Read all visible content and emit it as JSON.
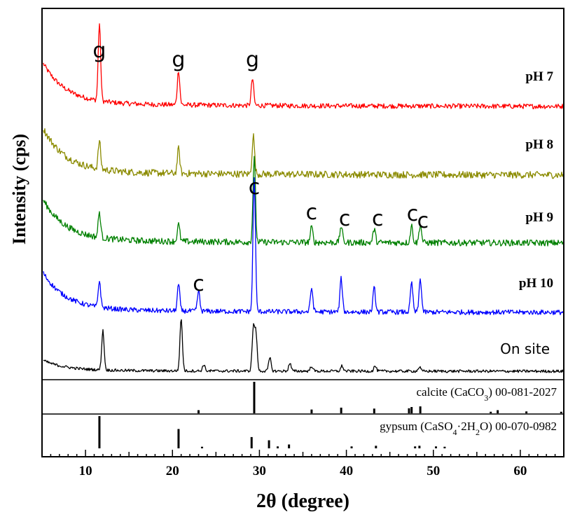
{
  "chart_data": {
    "type": "line",
    "title": "",
    "xlabel": "2θ (degree)",
    "ylabel": "Intensity (cps)",
    "xlim": [
      5,
      65
    ],
    "xticks": [
      10,
      20,
      30,
      40,
      50,
      60
    ],
    "series": [
      {
        "name": "pH 7",
        "color": "#ff0000",
        "peaks": [
          {
            "x": 11.6,
            "height": 1.0
          },
          {
            "x": 20.7,
            "height": 0.45
          },
          {
            "x": 29.2,
            "height": 0.35
          }
        ]
      },
      {
        "name": "pH 8",
        "color": "#8b8b00",
        "peaks": [
          {
            "x": 11.6,
            "height": 0.4
          },
          {
            "x": 20.7,
            "height": 0.35
          },
          {
            "x": 29.3,
            "height": 0.55
          }
        ]
      },
      {
        "name": "pH 9",
        "color": "#008000",
        "peaks": [
          {
            "x": 11.6,
            "height": 0.3
          },
          {
            "x": 20.7,
            "height": 0.2
          },
          {
            "x": 29.4,
            "height": 1.0
          },
          {
            "x": 36.0,
            "height": 0.18
          },
          {
            "x": 39.4,
            "height": 0.2
          },
          {
            "x": 43.2,
            "height": 0.16
          },
          {
            "x": 47.5,
            "height": 0.2
          },
          {
            "x": 48.5,
            "height": 0.22
          }
        ]
      },
      {
        "name": "pH 10",
        "color": "#0000ff",
        "peaks": [
          {
            "x": 11.6,
            "height": 0.2
          },
          {
            "x": 20.7,
            "height": 0.2
          },
          {
            "x": 23.0,
            "height": 0.15
          },
          {
            "x": 29.4,
            "height": 1.0
          },
          {
            "x": 36.0,
            "height": 0.18
          },
          {
            "x": 39.4,
            "height": 0.25
          },
          {
            "x": 43.2,
            "height": 0.18
          },
          {
            "x": 47.5,
            "height": 0.22
          },
          {
            "x": 48.5,
            "height": 0.25
          }
        ]
      },
      {
        "name": "On site",
        "color": "#000000",
        "peaks": [
          {
            "x": 12.0,
            "height": 0.75
          },
          {
            "x": 21.0,
            "height": 1.0
          },
          {
            "x": 23.6,
            "height": 0.12
          },
          {
            "x": 29.3,
            "height": 0.8
          },
          {
            "x": 29.6,
            "height": 0.7
          },
          {
            "x": 31.2,
            "height": 0.25
          },
          {
            "x": 33.5,
            "height": 0.15
          },
          {
            "x": 36.0,
            "height": 0.1
          },
          {
            "x": 39.5,
            "height": 0.1
          },
          {
            "x": 43.3,
            "height": 0.1
          },
          {
            "x": 48.4,
            "height": 0.08
          }
        ]
      }
    ],
    "reference_patterns": [
      {
        "name": "calcite (CaCO3) 00-081-2027",
        "lines": [
          {
            "x": 23.0,
            "h": 0.1
          },
          {
            "x": 29.4,
            "h": 1.0
          },
          {
            "x": 36.0,
            "h": 0.12
          },
          {
            "x": 39.4,
            "h": 0.18
          },
          {
            "x": 43.2,
            "h": 0.15
          },
          {
            "x": 47.2,
            "h": 0.16
          },
          {
            "x": 47.5,
            "h": 0.2
          },
          {
            "x": 48.5,
            "h": 0.22
          },
          {
            "x": 56.6,
            "h": 0.05
          },
          {
            "x": 57.4,
            "h": 0.1
          },
          {
            "x": 60.7,
            "h": 0.06
          },
          {
            "x": 64.7,
            "h": 0.05
          }
        ]
      },
      {
        "name": "gypsum (CaSO4·2H2O) 00-070-0982",
        "lines": [
          {
            "x": 11.6,
            "h": 1.0
          },
          {
            "x": 20.7,
            "h": 0.6
          },
          {
            "x": 23.4,
            "h": 0.05
          },
          {
            "x": 29.1,
            "h": 0.35
          },
          {
            "x": 31.1,
            "h": 0.25
          },
          {
            "x": 32.1,
            "h": 0.06
          },
          {
            "x": 33.4,
            "h": 0.12
          },
          {
            "x": 40.6,
            "h": 0.06
          },
          {
            "x": 43.4,
            "h": 0.08
          },
          {
            "x": 47.9,
            "h": 0.06
          },
          {
            "x": 48.4,
            "h": 0.08
          },
          {
            "x": 50.3,
            "h": 0.06
          },
          {
            "x": 51.3,
            "h": 0.05
          }
        ]
      }
    ],
    "annotations": [
      {
        "text": "g",
        "x": 11.6
      },
      {
        "text": "g",
        "x": 20.7
      },
      {
        "text": "g",
        "x": 29.2
      },
      {
        "text": "c",
        "x": 29.4
      },
      {
        "text": "c",
        "x": 36.0
      },
      {
        "text": "c",
        "x": 39.8
      },
      {
        "text": "c",
        "x": 43.6
      },
      {
        "text": "c",
        "x": 47.6
      },
      {
        "text": "c",
        "x": 48.8
      },
      {
        "text": "c",
        "x": 23.0
      }
    ]
  },
  "labels": {
    "ylabel": "Intensity (cps)",
    "xlabel": "2θ (degree)",
    "trace_labels": [
      "pH 7",
      "pH 8",
      "pH 9",
      "pH 10",
      "On site"
    ],
    "calcite_label": {
      "main": "calcite (CaCO",
      "sub": "3",
      "tail": ") 00-081-2027"
    },
    "gypsum_label": {
      "main": "gypsum (CaSO",
      "sub1": "4",
      "mid": "·2H",
      "sub2": "2",
      "tail": "O) 00-070-0982"
    }
  }
}
